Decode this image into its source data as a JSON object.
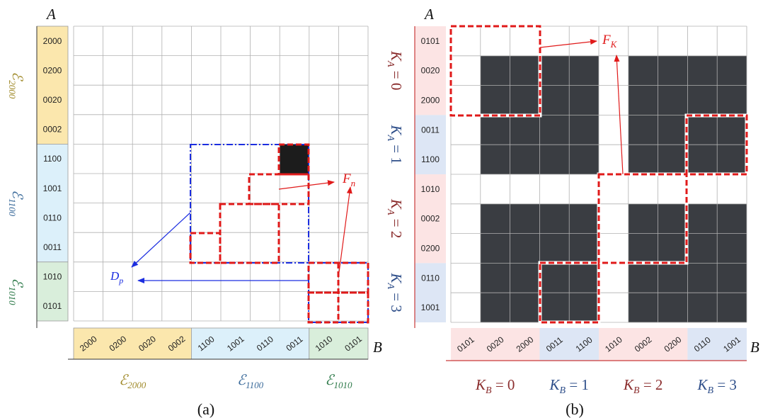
{
  "panel_a": {
    "caption": "(a)",
    "axis_a": "A",
    "axis_b": "B",
    "labels": [
      "2000",
      "0200",
      "0020",
      "0002",
      "1100",
      "1001",
      "0110",
      "0011",
      "1010",
      "0101"
    ],
    "sectors": [
      {
        "sub": "2000",
        "start": 0,
        "end": 4,
        "color": "#fbe7ad",
        "text_color": "#a08a2a"
      },
      {
        "sub": "1100",
        "start": 4,
        "end": 8,
        "color": "#dcf0fa",
        "text_color": "#3a6a9a"
      },
      {
        "sub": "1010",
        "start": 8,
        "end": 10,
        "color": "#d9eedb",
        "text_color": "#2e7a4a"
      }
    ],
    "filled_cells": [
      [
        4,
        7
      ]
    ],
    "fn_label": "F",
    "fn_sub": "n",
    "dp_label": "D",
    "dp_sub": "p"
  },
  "panel_b": {
    "caption": "(b)",
    "axis_a": "A",
    "axis_b": "B",
    "labels": [
      "0101",
      "0020",
      "2000",
      "0011",
      "1100",
      "1010",
      "0002",
      "0200",
      "0110",
      "1001"
    ],
    "k_groups": [
      {
        "text": "0",
        "start": 0,
        "end": 3,
        "color": "#fce4e4",
        "text_color": "#8b2e2e"
      },
      {
        "text": "1",
        "start": 3,
        "end": 5,
        "color": "#dde6f5",
        "text_color": "#2f4f8a"
      },
      {
        "text": "2",
        "start": 5,
        "end": 8,
        "color": "#fce4e4",
        "text_color": "#8b2e2e"
      },
      {
        "text": "3",
        "start": 8,
        "end": 10,
        "color": "#dde6f5",
        "text_color": "#2f4f8a"
      }
    ],
    "filled_rows": [
      1,
      2,
      3,
      4,
      6,
      7,
      8,
      9
    ],
    "filled_cols": [
      1,
      2,
      3,
      4,
      6,
      7,
      8,
      9
    ],
    "fk_label": "F",
    "fk_sub": "K",
    "ka_prefix": "K",
    "ka_sub": "A",
    "kb_prefix": "K",
    "kb_sub": "B"
  },
  "colors": {
    "grid": "#b0b0b0",
    "filled": "#3a3d42",
    "filled_a": "#1c1c1c",
    "red": "#e01a1a",
    "blue": "#1c2ee0"
  }
}
